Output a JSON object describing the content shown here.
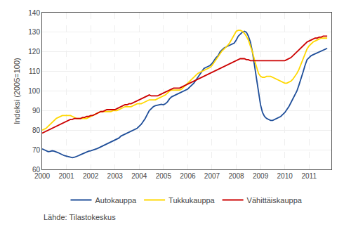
{
  "chart_data": {
    "type": "line",
    "ylabel": "Indeksi (2005=100)",
    "annotations": [
      "Lähde: Tilastokeskus"
    ],
    "xlim": [
      2000.0,
      2011.92
    ],
    "xticks": [
      2000,
      2001,
      2002,
      2003,
      2004,
      2005,
      2006,
      2007,
      2008,
      2009,
      2010,
      2011
    ],
    "ylim": [
      60,
      140
    ],
    "yticks": [
      60,
      70,
      80,
      90,
      100,
      110,
      120,
      130,
      140
    ],
    "grid": true,
    "legend": "bottom",
    "x": [
      2000.0,
      2000.083,
      2000.167,
      2000.25,
      2000.333,
      2000.417,
      2000.5,
      2000.583,
      2000.667,
      2000.75,
      2000.833,
      2000.917,
      2001.0,
      2001.083,
      2001.167,
      2001.25,
      2001.333,
      2001.417,
      2001.5,
      2001.583,
      2001.667,
      2001.75,
      2001.833,
      2001.917,
      2002.0,
      2002.083,
      2002.167,
      2002.25,
      2002.333,
      2002.417,
      2002.5,
      2002.583,
      2002.667,
      2002.75,
      2002.833,
      2002.917,
      2003.0,
      2003.083,
      2003.167,
      2003.25,
      2003.333,
      2003.417,
      2003.5,
      2003.583,
      2003.667,
      2003.75,
      2003.833,
      2003.917,
      2004.0,
      2004.083,
      2004.167,
      2004.25,
      2004.333,
      2004.417,
      2004.5,
      2004.583,
      2004.667,
      2004.75,
      2004.833,
      2004.917,
      2005.0,
      2005.083,
      2005.167,
      2005.25,
      2005.333,
      2005.417,
      2005.5,
      2005.583,
      2005.667,
      2005.75,
      2005.833,
      2005.917,
      2006.0,
      2006.083,
      2006.167,
      2006.25,
      2006.333,
      2006.417,
      2006.5,
      2006.583,
      2006.667,
      2006.75,
      2006.833,
      2006.917,
      2007.0,
      2007.083,
      2007.167,
      2007.25,
      2007.333,
      2007.417,
      2007.5,
      2007.583,
      2007.667,
      2007.75,
      2007.833,
      2007.917,
      2008.0,
      2008.083,
      2008.167,
      2008.25,
      2008.333,
      2008.417,
      2008.5,
      2008.583,
      2008.667,
      2008.75,
      2008.833,
      2008.917,
      2009.0,
      2009.083,
      2009.167,
      2009.25,
      2009.333,
      2009.417,
      2009.5,
      2009.583,
      2009.667,
      2009.75,
      2009.833,
      2009.917,
      2010.0,
      2010.083,
      2010.167,
      2010.25,
      2010.333,
      2010.417,
      2010.5,
      2010.583,
      2010.667,
      2010.75,
      2010.833,
      2010.917,
      2011.0,
      2011.083,
      2011.167,
      2011.25,
      2011.333,
      2011.417,
      2011.5,
      2011.583,
      2011.667,
      2011.75
    ],
    "series": [
      {
        "name": "Autokauppa",
        "color": "#1F4E99",
        "values": [
          70.5,
          70.0,
          69.5,
          69.0,
          69.2,
          69.5,
          69.3,
          69.0,
          68.5,
          68.0,
          67.5,
          67.0,
          66.8,
          66.5,
          66.3,
          66.0,
          66.2,
          66.5,
          67.0,
          67.5,
          68.0,
          68.5,
          69.0,
          69.3,
          69.5,
          69.8,
          70.2,
          70.5,
          71.0,
          71.5,
          72.0,
          72.5,
          73.0,
          73.5,
          74.0,
          74.5,
          75.0,
          75.5,
          76.0,
          77.0,
          77.5,
          78.0,
          78.5,
          79.0,
          79.5,
          80.0,
          80.5,
          81.0,
          82.0,
          83.0,
          84.5,
          86.0,
          88.0,
          90.0,
          91.0,
          92.0,
          92.5,
          92.8,
          93.0,
          93.2,
          93.0,
          93.5,
          94.5,
          96.0,
          97.0,
          97.5,
          98.0,
          98.5,
          99.0,
          99.5,
          100.0,
          100.5,
          101.0,
          102.0,
          103.0,
          104.0,
          105.5,
          107.0,
          108.5,
          110.0,
          111.5,
          112.0,
          112.5,
          113.0,
          114.0,
          115.5,
          117.0,
          118.0,
          120.0,
          121.0,
          122.0,
          122.5,
          123.0,
          123.5,
          124.0,
          124.5,
          126.0,
          128.0,
          129.0,
          130.0,
          130.5,
          130.0,
          128.0,
          125.0,
          120.0,
          113.0,
          107.0,
          100.0,
          93.0,
          89.0,
          87.0,
          86.0,
          85.5,
          85.0,
          85.0,
          85.5,
          86.0,
          86.5,
          87.0,
          88.0,
          89.0,
          90.5,
          92.0,
          94.0,
          96.0,
          98.0,
          100.0,
          103.0,
          106.0,
          109.5,
          113.0,
          116.0,
          117.0,
          118.0,
          118.5,
          119.0,
          119.5,
          120.0,
          120.5,
          121.0,
          121.5,
          121.8
        ]
      },
      {
        "name": "Tukkukauppa",
        "color": "#FFD700",
        "values": [
          80.0,
          80.5,
          81.0,
          82.0,
          83.0,
          84.0,
          85.0,
          86.0,
          86.5,
          87.0,
          87.5,
          87.5,
          87.5,
          87.5,
          87.5,
          87.0,
          86.5,
          86.0,
          86.0,
          86.0,
          86.0,
          86.0,
          86.0,
          86.5,
          87.0,
          87.5,
          88.0,
          88.5,
          89.0,
          89.5,
          89.5,
          89.5,
          89.5,
          89.5,
          89.5,
          90.0,
          90.0,
          90.0,
          90.5,
          91.0,
          91.5,
          92.0,
          92.0,
          92.0,
          92.0,
          92.5,
          93.0,
          93.5,
          93.5,
          93.5,
          94.0,
          94.5,
          95.0,
          95.5,
          95.5,
          95.5,
          95.5,
          96.0,
          96.5,
          97.0,
          97.5,
          98.0,
          99.0,
          100.0,
          100.5,
          100.5,
          100.5,
          100.5,
          100.5,
          101.0,
          102.0,
          103.0,
          104.0,
          105.0,
          106.0,
          107.0,
          108.0,
          109.0,
          109.5,
          110.0,
          110.5,
          111.0,
          111.5,
          112.0,
          113.0,
          114.5,
          116.0,
          117.5,
          119.0,
          120.5,
          121.5,
          122.5,
          123.5,
          125.0,
          127.0,
          129.0,
          130.5,
          131.0,
          131.0,
          130.5,
          129.5,
          128.0,
          126.0,
          123.0,
          120.0,
          116.0,
          112.0,
          109.0,
          107.5,
          107.0,
          107.0,
          107.5,
          107.5,
          107.5,
          107.0,
          106.5,
          106.0,
          105.5,
          105.0,
          104.5,
          104.0,
          104.0,
          104.5,
          105.0,
          106.0,
          107.5,
          109.0,
          111.0,
          113.5,
          116.0,
          119.0,
          121.5,
          123.0,
          124.0,
          125.0,
          125.5,
          126.0,
          126.5,
          127.0,
          127.0,
          127.0,
          127.0
        ]
      },
      {
        "name": "Vähittäiskauppa",
        "color": "#CC0000",
        "values": [
          78.5,
          79.0,
          79.5,
          80.0,
          80.5,
          81.0,
          81.5,
          82.0,
          82.5,
          83.0,
          83.5,
          84.0,
          84.5,
          85.0,
          85.5,
          85.5,
          86.0,
          86.0,
          86.0,
          86.0,
          86.5,
          86.5,
          87.0,
          87.0,
          87.5,
          87.5,
          88.0,
          88.5,
          89.0,
          89.5,
          89.5,
          90.0,
          90.5,
          90.5,
          90.5,
          90.5,
          90.5,
          91.0,
          91.5,
          92.0,
          92.5,
          93.0,
          93.0,
          93.5,
          93.5,
          94.0,
          94.5,
          95.0,
          95.5,
          96.0,
          96.5,
          97.0,
          97.5,
          98.0,
          97.5,
          97.5,
          97.5,
          97.5,
          98.0,
          98.5,
          99.0,
          99.5,
          100.0,
          100.5,
          101.0,
          101.5,
          101.5,
          101.5,
          101.5,
          102.0,
          102.5,
          103.0,
          103.5,
          104.0,
          104.5,
          105.0,
          105.5,
          106.0,
          106.5,
          107.0,
          107.5,
          108.0,
          108.5,
          109.0,
          109.5,
          110.0,
          110.5,
          111.0,
          111.5,
          112.0,
          112.5,
          113.0,
          113.5,
          114.0,
          114.5,
          115.0,
          115.5,
          116.0,
          116.5,
          116.5,
          116.5,
          116.0,
          116.0,
          115.5,
          115.5,
          115.5,
          115.5,
          115.5,
          115.5,
          115.5,
          115.5,
          115.5,
          115.5,
          115.5,
          115.5,
          115.5,
          115.5,
          115.5,
          115.5,
          115.5,
          115.5,
          116.0,
          116.5,
          117.0,
          118.0,
          119.0,
          120.0,
          121.0,
          122.0,
          123.0,
          124.0,
          125.0,
          125.5,
          126.0,
          126.5,
          127.0,
          127.0,
          127.5,
          127.5,
          128.0,
          128.0,
          128.0
        ]
      }
    ]
  }
}
